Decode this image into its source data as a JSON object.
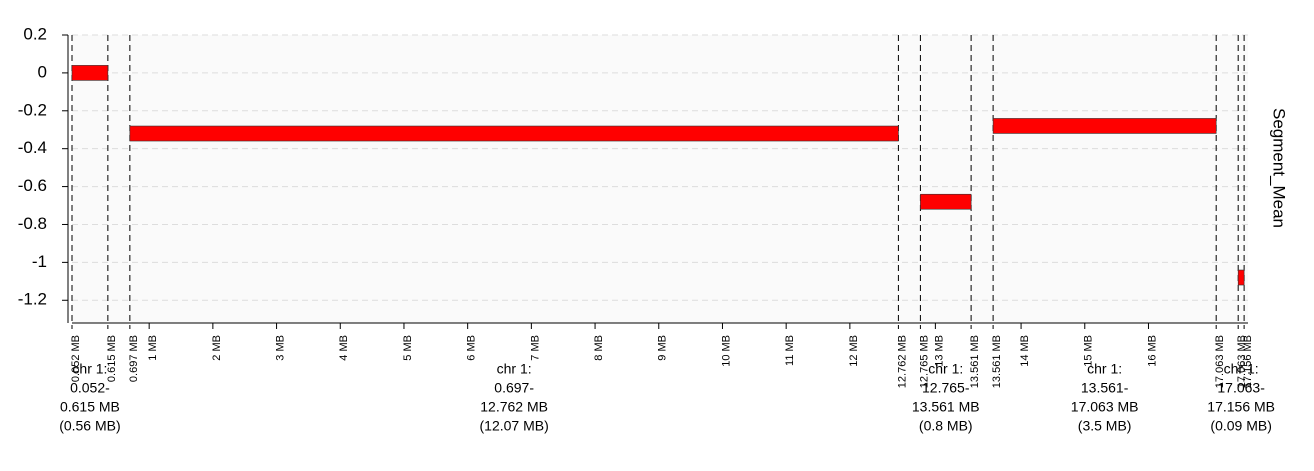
{
  "chart_data": {
    "type": "segment",
    "y_label": "Segment_Mean",
    "ylim": [
      -1.32,
      0.2
    ],
    "yticks": [
      0.2,
      0,
      -0.2,
      -0.4,
      -0.6,
      -0.8,
      -1,
      -1.2
    ],
    "grid": true,
    "color": "#ff0000",
    "segments": [
      {
        "start": 0.052,
        "end": 0.615,
        "value": 0.0,
        "start_label": "0.052 MB",
        "end_label": "0.615 MB",
        "label": [
          "chr 1:",
          "0.052-",
          "0.615 MB",
          "(0.56 MB)"
        ]
      },
      {
        "start": 0.697,
        "end": 12.762,
        "value": -0.32,
        "start_label": "0.697 MB",
        "end_label": "12.762 MB",
        "label": [
          "chr 1:",
          "0.697-",
          "12.762 MB",
          "(12.07 MB)"
        ]
      },
      {
        "start": 12.765,
        "end": 13.561,
        "value": -0.68,
        "start_label": "12.765 MB",
        "end_label": "13.561 MB",
        "label": [
          "chr 1:",
          "12.765-",
          "13.561 MB",
          "(0.8 MB)"
        ]
      },
      {
        "start": 13.561,
        "end": 17.063,
        "value": -0.28,
        "start_label": "13.561 MB",
        "end_label": "17.063 MB",
        "label": [
          "chr 1:",
          "13.561-",
          "17.063 MB",
          "(3.5 MB)"
        ]
      },
      {
        "start": 17.063,
        "end": 17.156,
        "value": -1.08,
        "start_label": "17.063 MB",
        "end_label": "17.156 MB",
        "label": [
          "chr 1:",
          "17.063-",
          "17.156 MB",
          "(0.09 MB)"
        ]
      }
    ],
    "xticks": [
      {
        "value": 1,
        "label": "1 MB"
      },
      {
        "value": 2,
        "label": "2 MB"
      },
      {
        "value": 3,
        "label": "3 MB"
      },
      {
        "value": 4,
        "label": "4 MB"
      },
      {
        "value": 5,
        "label": "5 MB"
      },
      {
        "value": 6,
        "label": "6 MB"
      },
      {
        "value": 7,
        "label": "7 MB"
      },
      {
        "value": 8,
        "label": "8 MB"
      },
      {
        "value": 9,
        "label": "9 MB"
      },
      {
        "value": 10,
        "label": "10 MB"
      },
      {
        "value": 11,
        "label": "11 MB"
      },
      {
        "value": 12,
        "label": "12 MB"
      },
      {
        "value": 13,
        "label": "13 MB"
      },
      {
        "value": 14,
        "label": "14 MB"
      },
      {
        "value": 15,
        "label": "15 MB"
      },
      {
        "value": 16,
        "label": "16 MB"
      }
    ]
  }
}
